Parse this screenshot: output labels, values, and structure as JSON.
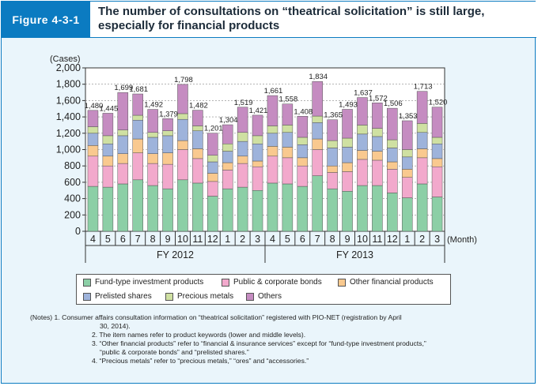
{
  "figure": {
    "label": "Figure 4-3-1",
    "title": "The number of consultations on “theatrical solicitation” is still large, especially for financial products"
  },
  "chart_data": {
    "type": "bar",
    "stacked": true,
    "unit_label": "(Cases)",
    "x_unit_label": "(Month)",
    "ylim": [
      0,
      2000
    ],
    "y_ticks": [
      "0",
      "200",
      "400",
      "600",
      "800",
      "1,000",
      "1,200",
      "1,400",
      "1,600",
      "1,800",
      "2,000"
    ],
    "grid": "horizontal-dashed",
    "categories": [
      "4",
      "5",
      "6",
      "7",
      "8",
      "9",
      "10",
      "11",
      "12",
      "1",
      "2",
      "3",
      "4",
      "5",
      "6",
      "7",
      "8",
      "9",
      "10",
      "11",
      "12",
      "1",
      "2",
      "3"
    ],
    "fiscal_years": [
      {
        "label": "FY 2012",
        "months": 12
      },
      {
        "label": "FY 2013",
        "months": 12
      }
    ],
    "totals": [
      1480,
      1445,
      1699,
      1681,
      1492,
      1379,
      1798,
      1482,
      1201,
      1304,
      1519,
      1421,
      1661,
      1558,
      1408,
      1834,
      1365,
      1493,
      1637,
      1572,
      1506,
      1353,
      1713,
      1520
    ],
    "total_labels": [
      "1,480",
      "1,445",
      "1,699",
      "1,681",
      "1,492",
      "1,379",
      "1,798",
      "1,482",
      "1,201",
      "1,304",
      "1,519",
      "1,421",
      "1,661",
      "1,558",
      "1,408",
      "1,834",
      "1,365",
      "1,493",
      "1,637",
      "1,572",
      "1,506",
      "1,353",
      "1,713",
      "1,520"
    ],
    "series": [
      {
        "name": "Fund-type investment products",
        "color": "#8ccfa6",
        "values": [
          550,
          540,
          580,
          630,
          560,
          520,
          630,
          590,
          430,
          520,
          540,
          500,
          590,
          580,
          550,
          680,
          520,
          490,
          560,
          560,
          470,
          410,
          580,
          420
        ]
      },
      {
        "name": "Public & corporate bonds",
        "color": "#f2a9cc",
        "values": [
          370,
          260,
          250,
          330,
          270,
          300,
          370,
          300,
          180,
          230,
          290,
          290,
          330,
          320,
          250,
          320,
          200,
          240,
          320,
          310,
          290,
          250,
          320,
          370
        ]
      },
      {
        "name": "Other financial products",
        "color": "#f9c98f",
        "values": [
          130,
          120,
          120,
          170,
          120,
          140,
          110,
          120,
          100,
          90,
          90,
          70,
          120,
          130,
          100,
          130,
          80,
          110,
          110,
          110,
          90,
          100,
          110,
          100
        ]
      },
      {
        "name": "Prelisted shares",
        "color": "#9eb3db",
        "values": [
          150,
          150,
          220,
          230,
          200,
          210,
          260,
          220,
          140,
          140,
          180,
          210,
          160,
          180,
          160,
          200,
          220,
          190,
          200,
          180,
          170,
          150,
          200,
          180
        ]
      },
      {
        "name": "Precious metals",
        "color": "#cfe0a2",
        "values": [
          80,
          100,
          70,
          60,
          60,
          60,
          70,
          60,
          80,
          90,
          110,
          100,
          90,
          90,
          90,
          80,
          90,
          110,
          110,
          100,
          100,
          90,
          110,
          80
        ]
      },
      {
        "name": "Others",
        "color": "#c58cc1",
        "values": [
          200,
          275,
          459,
          261,
          282,
          149,
          358,
          192,
          271,
          234,
          309,
          251,
          371,
          258,
          258,
          424,
          255,
          353,
          337,
          312,
          386,
          353,
          393,
          370
        ]
      }
    ]
  },
  "notes": {
    "prefix": "(Notes) 1.",
    "n1": "Consumer affairs consultation information on “theatrical solicitation” registered with PIO-NET (registration by April",
    "n1b": "30, 2014).",
    "n2": "2. The item names refer to product keywords (lower and middle levels).",
    "n3": "3. “Other financial products” refer to “financial & insurance services” except for “fund-type investment products,”",
    "n3b": "“public & corporate bonds” and “prelisted shares.”",
    "n4": "4. “Precious metals” refer to “precious metals,” “ores” and “accessories.”"
  }
}
